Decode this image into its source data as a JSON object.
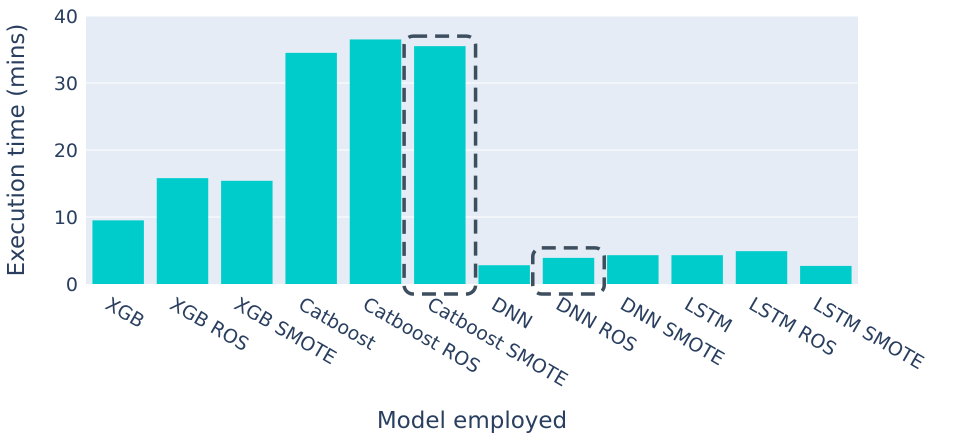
{
  "chart_data": {
    "type": "bar",
    "xlabel": "Model employed",
    "ylabel": "Execution time (mins)",
    "ylim": [
      0,
      40
    ],
    "yticks": [
      0,
      10,
      20,
      30,
      40
    ],
    "grid": true,
    "categories": [
      "XGB",
      "XGB ROS",
      "XGB SMOTE",
      "Catboost",
      "Catboost ROS",
      "Catboost SMOTE",
      "DNN",
      "DNN ROS",
      "DNN SMOTE",
      "LSTM",
      "LSTM ROS",
      "LSTM SMOTE"
    ],
    "values": [
      9.5,
      15.8,
      15.4,
      34.5,
      36.5,
      35.5,
      2.8,
      3.9,
      4.3,
      4.3,
      4.9,
      2.7
    ],
    "highlighted": [
      "Catboost SMOTE",
      "DNN ROS"
    ],
    "colors": {
      "bar": "#00cccc",
      "plot_background": "#e5ecf6",
      "grid": "#ffffff",
      "text": "#2a3f5f",
      "highlight_box": "#3d4f5f"
    }
  }
}
